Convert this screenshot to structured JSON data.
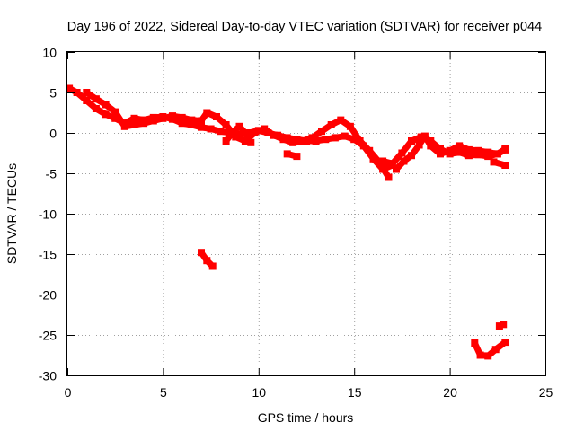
{
  "chart_data": {
    "type": "scatter",
    "title": "Day 196 of 2022, Sidereal Day-to-day VTEC variation (SDTVAR) for receiver p044",
    "xlabel": "GPS time / hours",
    "ylabel": "SDTVAR / TECUs",
    "xlim": [
      0,
      25
    ],
    "ylim": [
      -30,
      10
    ],
    "x_ticks": [
      0,
      5,
      10,
      15,
      20,
      25
    ],
    "y_ticks": [
      10,
      5,
      0,
      -5,
      -10,
      -15,
      -20,
      -25,
      -30
    ],
    "grid": true,
    "color": "#ff0000",
    "series": [
      {
        "name": "main-trace-a",
        "x": [
          0.1,
          0.5,
          1.0,
          1.5,
          2.0,
          2.5,
          3.0,
          3.5,
          4.0,
          4.5,
          5.0,
          5.5,
          6.0,
          6.5,
          7.0,
          7.5,
          8.0,
          8.5,
          9.0,
          9.5,
          10.0,
          10.5,
          11.0,
          11.5,
          12.0,
          12.5,
          13.0,
          13.5,
          14.0,
          14.5,
          15.0,
          15.5,
          16.0,
          16.5,
          17.0
        ],
        "y": [
          5.5,
          5.0,
          4.0,
          3.0,
          2.3,
          1.8,
          1.2,
          1.8,
          1.6,
          1.9,
          2.0,
          1.7,
          1.2,
          1.0,
          0.7,
          0.5,
          0.2,
          0.0,
          -0.2,
          0.0,
          0.3,
          0.0,
          -0.3,
          -0.6,
          -0.8,
          -1.0,
          -1.0,
          -0.8,
          -0.6,
          -0.4,
          -0.8,
          -1.6,
          -3.2,
          -4.5,
          -4.0
        ]
      },
      {
        "name": "main-trace-b",
        "x": [
          1.0,
          1.5,
          2.0,
          2.5,
          3.0,
          3.5,
          4.0,
          4.5,
          5.0,
          5.5,
          6.0,
          6.5,
          7.0,
          7.3,
          7.8,
          8.3,
          8.8,
          9.3,
          9.8,
          10.3,
          10.8,
          11.3,
          11.8,
          12.3,
          12.8,
          13.3,
          13.8,
          14.3,
          14.8,
          15.3,
          15.8,
          16.3,
          16.8
        ],
        "y": [
          5.0,
          4.2,
          3.5,
          2.6,
          0.8,
          1.0,
          1.2,
          1.5,
          1.8,
          2.1,
          1.9,
          1.6,
          1.5,
          2.5,
          2.0,
          1.0,
          -0.5,
          -1.0,
          0.0,
          0.5,
          -0.3,
          -0.8,
          -1.2,
          -1.0,
          -0.6,
          0.2,
          1.0,
          1.6,
          0.8,
          -1.0,
          -2.2,
          -3.6,
          -5.5
        ]
      },
      {
        "name": "main-trace-c",
        "x": [
          8.3,
          8.7,
          9.0,
          9.3,
          9.6
        ],
        "y": [
          -1.0,
          0.2,
          0.8,
          0.0,
          -1.2
        ]
      },
      {
        "name": "main-trace-d",
        "x": [
          16.5,
          17.0,
          17.5,
          18.0,
          18.5,
          19.0,
          19.5,
          20.0,
          20.5,
          21.0,
          21.5,
          22.0,
          22.5,
          22.9
        ],
        "y": [
          -3.5,
          -3.8,
          -2.5,
          -1.0,
          -0.5,
          -1.0,
          -2.0,
          -2.6,
          -2.4,
          -2.8,
          -2.7,
          -2.9,
          -2.6,
          -2.0
        ]
      },
      {
        "name": "main-trace-e",
        "x": [
          17.2,
          17.6,
          18.0,
          18.4,
          18.7,
          19.0,
          19.5,
          20.0,
          20.5,
          21.0,
          21.5,
          22.0,
          22.5,
          22.9
        ],
        "y": [
          -4.5,
          -3.5,
          -2.8,
          -1.5,
          -0.4,
          -1.6,
          -2.6,
          -2.2,
          -1.6,
          -2.1,
          -2.2,
          -2.4,
          -2.6,
          -2.1
        ]
      },
      {
        "name": "trace-near-11-8",
        "x": [
          11.5,
          12.0
        ],
        "y": [
          -2.6,
          -2.9
        ]
      },
      {
        "name": "trace-near-22-7",
        "x": [
          22.3,
          22.9
        ],
        "y": [
          -3.6,
          -4.0
        ]
      },
      {
        "name": "trace-near-7-4",
        "x": [
          7.0,
          7.3,
          7.6
        ],
        "y": [
          -14.8,
          -15.8,
          -16.5
        ]
      },
      {
        "name": "trace-near-21-8",
        "x": [
          21.3,
          21.6,
          22.0,
          22.4,
          22.9
        ],
        "y": [
          -26.0,
          -27.5,
          -27.6,
          -26.8,
          -25.9
        ]
      },
      {
        "name": "trace-near-22-7-b",
        "x": [
          22.6,
          22.8
        ],
        "y": [
          -23.9,
          -23.7
        ]
      }
    ]
  }
}
